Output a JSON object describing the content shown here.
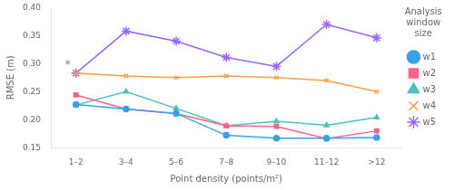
{
  "chart_data": {
    "type": "line",
    "categories": [
      "1–2",
      "3–4",
      "5–6",
      "7–8",
      "9–10",
      "11–12",
      ">12"
    ],
    "series": [
      {
        "name": "w1",
        "marker": "circle",
        "values": [
          0.227,
          0.219,
          0.211,
          0.172,
          0.167,
          0.167,
          0.168
        ]
      },
      {
        "name": "w2",
        "marker": "square",
        "values": [
          0.244,
          0.219,
          0.211,
          0.189,
          0.188,
          0.166,
          0.18
        ]
      },
      {
        "name": "w3",
        "marker": "triangle",
        "values": [
          0.226,
          0.25,
          0.22,
          0.189,
          0.197,
          0.19,
          0.204
        ]
      },
      {
        "name": "w4",
        "marker": "x",
        "values": [
          0.283,
          0.278,
          0.275,
          0.278,
          0.275,
          0.27,
          0.25
        ]
      },
      {
        "name": "w5",
        "marker": "star",
        "values": [
          0.283,
          0.358,
          0.34,
          0.311,
          0.295,
          0.37,
          0.346
        ]
      }
    ],
    "xlabel": "Point density (points/m²)",
    "ylabel": "RMSE (m)",
    "legend_title": "Analysis\nwindow\nsize",
    "legend": "right",
    "ylim": [
      0.15,
      0.4
    ],
    "yticks": [
      0.15,
      {
        "value": 0.2,
        "label": "0.20"
      },
      0.25,
      {
        "value": 0.3,
        "label": "0.30"
      },
      0.35,
      {
        "value": 0.4,
        "label": "0.40"
      }
    ],
    "grid": false,
    "annotations": [
      {
        "text": "*",
        "x": "1–2",
        "y": 0.297
      }
    ]
  }
}
